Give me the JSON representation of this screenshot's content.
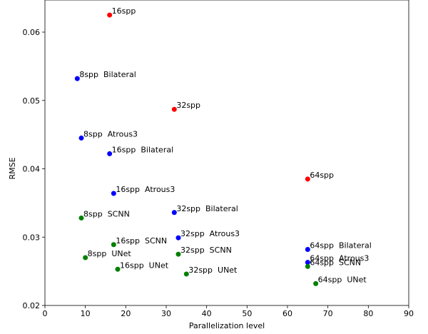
{
  "chart_data": {
    "type": "scatter",
    "x_label": "Parallelization level",
    "y_label": "RMSE",
    "xlim": [
      0,
      90
    ],
    "xticks": [
      0,
      10,
      20,
      30,
      40,
      50,
      60,
      70,
      80,
      90
    ],
    "ylim": [
      0.02,
      0.0647
    ],
    "yticks": [
      0.02,
      0.03,
      0.04,
      0.05,
      0.06
    ],
    "points": [
      {
        "label": "16spp",
        "x": 16,
        "y": 0.0625,
        "color": "#ff0000"
      },
      {
        "label": "8spp  Bilateral",
        "x": 8,
        "y": 0.0532,
        "color": "#0000ff"
      },
      {
        "label": "32spp",
        "x": 32,
        "y": 0.0487,
        "color": "#ff0000"
      },
      {
        "label": "8spp  Atrous3",
        "x": 9,
        "y": 0.0445,
        "color": "#0000ff"
      },
      {
        "label": "16spp  Bilateral",
        "x": 16,
        "y": 0.0422,
        "color": "#0000ff"
      },
      {
        "label": "64spp",
        "x": 65,
        "y": 0.0385,
        "color": "#ff0000"
      },
      {
        "label": "16spp  Atrous3",
        "x": 17,
        "y": 0.0364,
        "color": "#0000ff"
      },
      {
        "label": "32spp  Bilateral",
        "x": 32,
        "y": 0.0336,
        "color": "#0000ff"
      },
      {
        "label": "8spp  SCNN",
        "x": 9,
        "y": 0.0328,
        "color": "#008000"
      },
      {
        "label": "32spp  Atrous3",
        "x": 33,
        "y": 0.0299,
        "color": "#0000ff"
      },
      {
        "label": "16spp  SCNN",
        "x": 17,
        "y": 0.0289,
        "color": "#008000"
      },
      {
        "label": "64spp  Bilateral",
        "x": 65,
        "y": 0.0282,
        "color": "#0000ff"
      },
      {
        "label": "32spp  SCNN",
        "x": 33,
        "y": 0.0275,
        "color": "#008000"
      },
      {
        "label": "8spp  UNet",
        "x": 10,
        "y": 0.027,
        "color": "#008000"
      },
      {
        "label": "64spp  Atrous3",
        "x": 65,
        "y": 0.0263,
        "color": "#0000ff"
      },
      {
        "label": "64spp  SCNN",
        "x": 65,
        "y": 0.0257,
        "color": "#008000"
      },
      {
        "label": "16spp  UNet",
        "x": 18,
        "y": 0.0253,
        "color": "#008000"
      },
      {
        "label": "32spp  UNet",
        "x": 35,
        "y": 0.0246,
        "color": "#008000"
      },
      {
        "label": "64spp  UNet",
        "x": 67,
        "y": 0.0232,
        "color": "#008000"
      }
    ]
  }
}
